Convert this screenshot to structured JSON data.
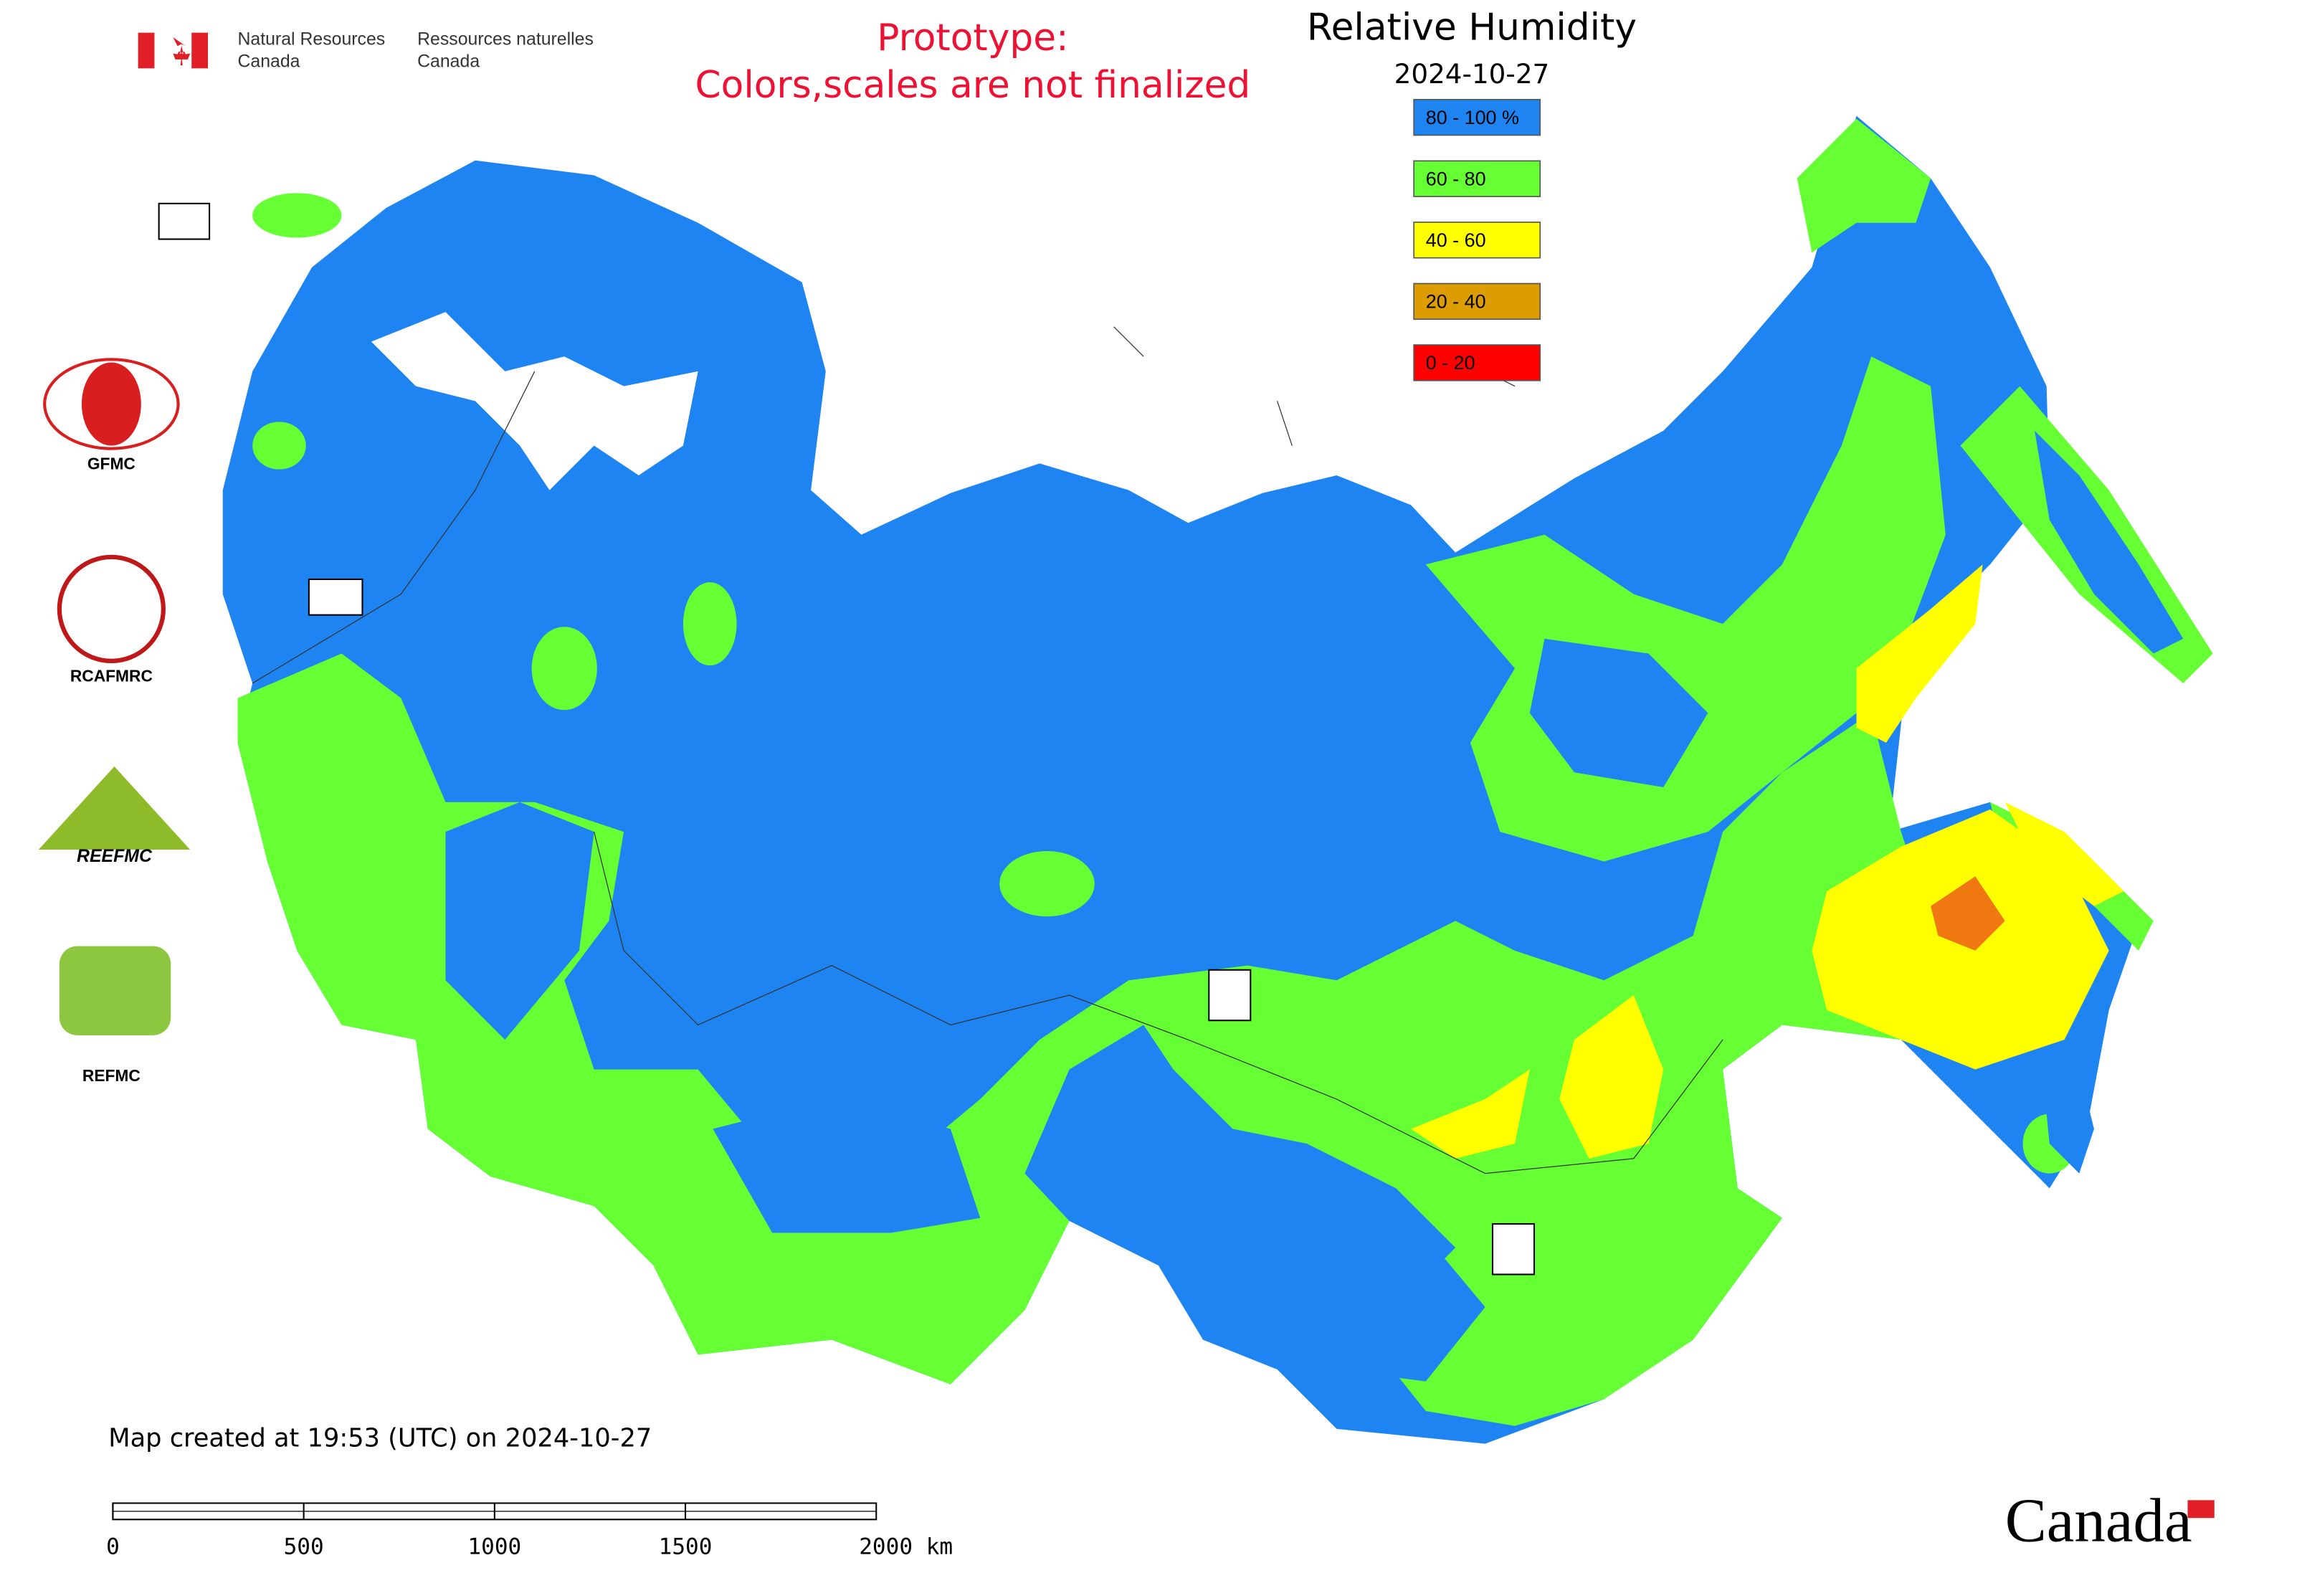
{
  "header": {
    "agency_en": [
      "Natural Resources",
      "Canada"
    ],
    "agency_fr": [
      "Ressources naturelles",
      "Canada"
    ]
  },
  "notice": [
    "Prototype:",
    "Colors,scales are not finalized"
  ],
  "legend": {
    "title": "Relative Humidity",
    "date": "2024-10-27",
    "items": [
      {
        "label": "80 - 100 %",
        "color": "#1e84f2"
      },
      {
        "label": "60 - 80",
        "color": "#66ff33"
      },
      {
        "label": "40 - 60",
        "color": "#ffff00"
      },
      {
        "label": "20 - 40",
        "color": "#dd9c00"
      },
      {
        "label": "0 - 20",
        "color": "#ff0000"
      }
    ]
  },
  "logos": [
    "GFMC",
    "RCAFMRC",
    "REEFMC",
    "REFMC"
  ],
  "footer": {
    "created": "Map created at 19:53 (UTC) on 2024-10-27",
    "scale_labels": [
      "0",
      "500",
      "1000",
      "1500",
      "2000 km"
    ],
    "wordmark": "Canada"
  }
}
